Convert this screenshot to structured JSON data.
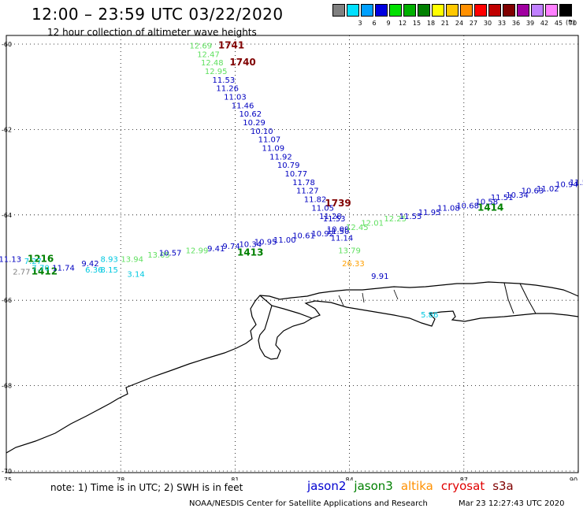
{
  "title": "12:00 – 23:59 UTC 03/22/2020",
  "subtitle": "12 hour collection of altimeter wave heights",
  "colorbar": {
    "unit": "(ft)",
    "bins": [
      {
        "label": "",
        "color": "#808080"
      },
      {
        "label": "3",
        "color": "#00e0ff"
      },
      {
        "label": "6",
        "color": "#00a0ff"
      },
      {
        "label": "9",
        "color": "#0000e0"
      },
      {
        "label": "12",
        "color": "#00e000"
      },
      {
        "label": "15",
        "color": "#00b000"
      },
      {
        "label": "18",
        "color": "#008000"
      },
      {
        "label": "21",
        "color": "#ffff00"
      },
      {
        "label": "24",
        "color": "#ffc800"
      },
      {
        "label": "27",
        "color": "#ff9000"
      },
      {
        "label": "30",
        "color": "#ff0000"
      },
      {
        "label": "33",
        "color": "#c00000"
      },
      {
        "label": "36",
        "color": "#800000"
      },
      {
        "label": "39",
        "color": "#a000a0"
      },
      {
        "label": "42",
        "color": "#c080ff"
      },
      {
        "label": "45",
        "color": "#ff80ff"
      },
      {
        "label": "70",
        "color": "#000000"
      }
    ]
  },
  "axes": {
    "lon_ticks": [
      "75",
      "78",
      "81",
      "84",
      "87",
      "90"
    ],
    "lat_ticks": [
      "-60",
      "-62",
      "-64",
      "-66",
      "-68",
      "-70"
    ]
  },
  "map": {
    "lon_range": [
      75,
      90
    ],
    "lat_range": [
      -60,
      -70
    ],
    "colors": {
      "grey": "#808080",
      "cyan": "#00c8e0",
      "lightgreen": "#60e060",
      "blue": "#0000c0",
      "green": "#008000",
      "orange": "#ffa000",
      "darkred": "#800000"
    },
    "labels": [
      {
        "t": "1741",
        "lon": 80.9,
        "lat": -60.1,
        "c": "darkred",
        "big": true
      },
      {
        "t": "1740",
        "lon": 81.2,
        "lat": -60.5,
        "c": "darkred",
        "big": true
      },
      {
        "t": "1739",
        "lon": 83.7,
        "lat": -63.8,
        "c": "darkred",
        "big": true
      },
      {
        "t": "1216",
        "lon": 75.9,
        "lat": -65.1,
        "c": "green",
        "big": true
      },
      {
        "t": "1412",
        "lon": 76.0,
        "lat": -65.4,
        "c": "green",
        "big": true
      },
      {
        "t": "1413",
        "lon": 81.4,
        "lat": -64.95,
        "c": "green",
        "big": true
      },
      {
        "t": "1414",
        "lon": 87.7,
        "lat": -63.9,
        "c": "green",
        "big": true
      },
      {
        "t": "12.69",
        "lon": 80.1,
        "lat": -60.1,
        "c": "lightgreen"
      },
      {
        "t": "12.47",
        "lon": 80.3,
        "lat": -60.3,
        "c": "lightgreen"
      },
      {
        "t": "12.48",
        "lon": 80.4,
        "lat": -60.5,
        "c": "lightgreen"
      },
      {
        "t": "12.95",
        "lon": 80.5,
        "lat": -60.7,
        "c": "lightgreen"
      },
      {
        "t": "11.53",
        "lon": 80.7,
        "lat": -60.9,
        "c": "blue"
      },
      {
        "t": "11.26",
        "lon": 80.8,
        "lat": -61.1,
        "c": "blue"
      },
      {
        "t": "11.03",
        "lon": 81.0,
        "lat": -61.3,
        "c": "blue"
      },
      {
        "t": "11.46",
        "lon": 81.2,
        "lat": -61.5,
        "c": "blue"
      },
      {
        "t": "10.62",
        "lon": 81.4,
        "lat": -61.7,
        "c": "blue"
      },
      {
        "t": "10.29",
        "lon": 81.5,
        "lat": -61.9,
        "c": "blue"
      },
      {
        "t": "10.10",
        "lon": 81.7,
        "lat": -62.1,
        "c": "blue"
      },
      {
        "t": "11.07",
        "lon": 81.9,
        "lat": -62.3,
        "c": "blue"
      },
      {
        "t": "11.09",
        "lon": 82.0,
        "lat": -62.5,
        "c": "blue"
      },
      {
        "t": "11.92",
        "lon": 82.2,
        "lat": -62.7,
        "c": "blue"
      },
      {
        "t": "10.79",
        "lon": 82.4,
        "lat": -62.9,
        "c": "blue"
      },
      {
        "t": "10.77",
        "lon": 82.6,
        "lat": -63.1,
        "c": "blue"
      },
      {
        "t": "11.78",
        "lon": 82.8,
        "lat": -63.3,
        "c": "blue"
      },
      {
        "t": "11.27",
        "lon": 82.9,
        "lat": -63.5,
        "c": "blue"
      },
      {
        "t": "11.82",
        "lon": 83.1,
        "lat": -63.7,
        "c": "blue"
      },
      {
        "t": "11.05",
        "lon": 83.3,
        "lat": -63.9,
        "c": "blue"
      },
      {
        "t": "11.28",
        "lon": 83.5,
        "lat": -64.1,
        "c": "blue"
      },
      {
        "t": "11.53",
        "lon": 83.6,
        "lat": -64.15,
        "c": "blue"
      },
      {
        "t": "10.09",
        "lon": 83.7,
        "lat": -64.4,
        "c": "blue"
      },
      {
        "t": "11.14",
        "lon": 83.8,
        "lat": -64.6,
        "c": "blue"
      },
      {
        "t": "13.79",
        "lon": 84.0,
        "lat": -64.9,
        "c": "lightgreen"
      },
      {
        "t": "26.33",
        "lon": 84.1,
        "lat": -65.2,
        "c": "orange"
      },
      {
        "t": "9.91",
        "lon": 84.8,
        "lat": -65.5,
        "c": "blue"
      },
      {
        "t": "11.13",
        "lon": 75.1,
        "lat": -65.1,
        "c": "blue"
      },
      {
        "t": "2.77",
        "lon": 75.4,
        "lat": -65.4,
        "c": "grey"
      },
      {
        "t": "7.27",
        "lon": 75.7,
        "lat": -65.15,
        "c": "cyan"
      },
      {
        "t": "7.70",
        "lon": 75.9,
        "lat": -65.3,
        "c": "cyan"
      },
      {
        "t": "11.74",
        "lon": 76.5,
        "lat": -65.3,
        "c": "blue"
      },
      {
        "t": "9.42",
        "lon": 77.2,
        "lat": -65.2,
        "c": "blue"
      },
      {
        "t": "6.36",
        "lon": 77.3,
        "lat": -65.35,
        "c": "cyan"
      },
      {
        "t": "8.93",
        "lon": 77.7,
        "lat": -65.1,
        "c": "cyan"
      },
      {
        "t": "8.15",
        "lon": 77.7,
        "lat": -65.35,
        "c": "cyan"
      },
      {
        "t": "3.14",
        "lon": 78.4,
        "lat": -65.45,
        "c": "cyan"
      },
      {
        "t": "13.94",
        "lon": 78.3,
        "lat": -65.1,
        "c": "lightgreen"
      },
      {
        "t": "13.05",
        "lon": 79.0,
        "lat": -65.0,
        "c": "lightgreen"
      },
      {
        "t": "10.57",
        "lon": 79.3,
        "lat": -64.95,
        "c": "blue"
      },
      {
        "t": "12.99",
        "lon": 80.0,
        "lat": -64.9,
        "c": "lightgreen"
      },
      {
        "t": "9.41",
        "lon": 80.5,
        "lat": -64.85,
        "c": "blue"
      },
      {
        "t": "9.74",
        "lon": 80.9,
        "lat": -64.8,
        "c": "blue"
      },
      {
        "t": "10.34",
        "lon": 81.4,
        "lat": -64.75,
        "c": "blue"
      },
      {
        "t": "10.95",
        "lon": 81.8,
        "lat": -64.7,
        "c": "blue"
      },
      {
        "t": "11.00",
        "lon": 82.3,
        "lat": -64.65,
        "c": "blue"
      },
      {
        "t": "10.61",
        "lon": 82.8,
        "lat": -64.55,
        "c": "blue"
      },
      {
        "t": "10.92",
        "lon": 83.3,
        "lat": -64.5,
        "c": "blue"
      },
      {
        "t": "11.50",
        "lon": 83.7,
        "lat": -64.45,
        "c": "blue"
      },
      {
        "t": "12.45",
        "lon": 84.2,
        "lat": -64.35,
        "c": "lightgreen"
      },
      {
        "t": "12.01",
        "lon": 84.6,
        "lat": -64.25,
        "c": "lightgreen"
      },
      {
        "t": "12.25",
        "lon": 85.2,
        "lat": -64.15,
        "c": "lightgreen"
      },
      {
        "t": "11.55",
        "lon": 85.6,
        "lat": -64.1,
        "c": "blue"
      },
      {
        "t": "11.95",
        "lon": 86.1,
        "lat": -64.0,
        "c": "blue"
      },
      {
        "t": "11.08",
        "lon": 86.6,
        "lat": -63.9,
        "c": "blue"
      },
      {
        "t": "10.68",
        "lon": 87.1,
        "lat": -63.85,
        "c": "blue"
      },
      {
        "t": "10.58",
        "lon": 87.6,
        "lat": -63.75,
        "c": "blue"
      },
      {
        "t": "11.51",
        "lon": 88.0,
        "lat": -63.65,
        "c": "blue"
      },
      {
        "t": "10.34",
        "lon": 88.4,
        "lat": -63.6,
        "c": "blue"
      },
      {
        "t": "10.63",
        "lon": 88.8,
        "lat": -63.5,
        "c": "blue"
      },
      {
        "t": "11.02",
        "lon": 89.2,
        "lat": -63.45,
        "c": "blue"
      },
      {
        "t": "10.94",
        "lon": 89.7,
        "lat": -63.35,
        "c": "blue"
      },
      {
        "t": "11.5",
        "lon": 90.0,
        "lat": -63.3,
        "c": "blue"
      },
      {
        "t": "5.86",
        "lon": 86.1,
        "lat": -66.4,
        "c": "cyan"
      }
    ]
  },
  "footer": {
    "note": "note:  1) Time is in UTC;  2) SWH is in feet",
    "satellites": [
      {
        "name": "jason2",
        "color": "#0000d0"
      },
      {
        "name": "jason3",
        "color": "#008000"
      },
      {
        "name": "altika",
        "color": "#ff9000"
      },
      {
        "name": "cryosat",
        "color": "#e00000"
      },
      {
        "name": "s3a",
        "color": "#800000"
      }
    ],
    "credit": "NOAA/NESDIS Center for Satellite Applications and Research",
    "timestamp": "Mar 23 12:27:43 UTC 2020"
  }
}
